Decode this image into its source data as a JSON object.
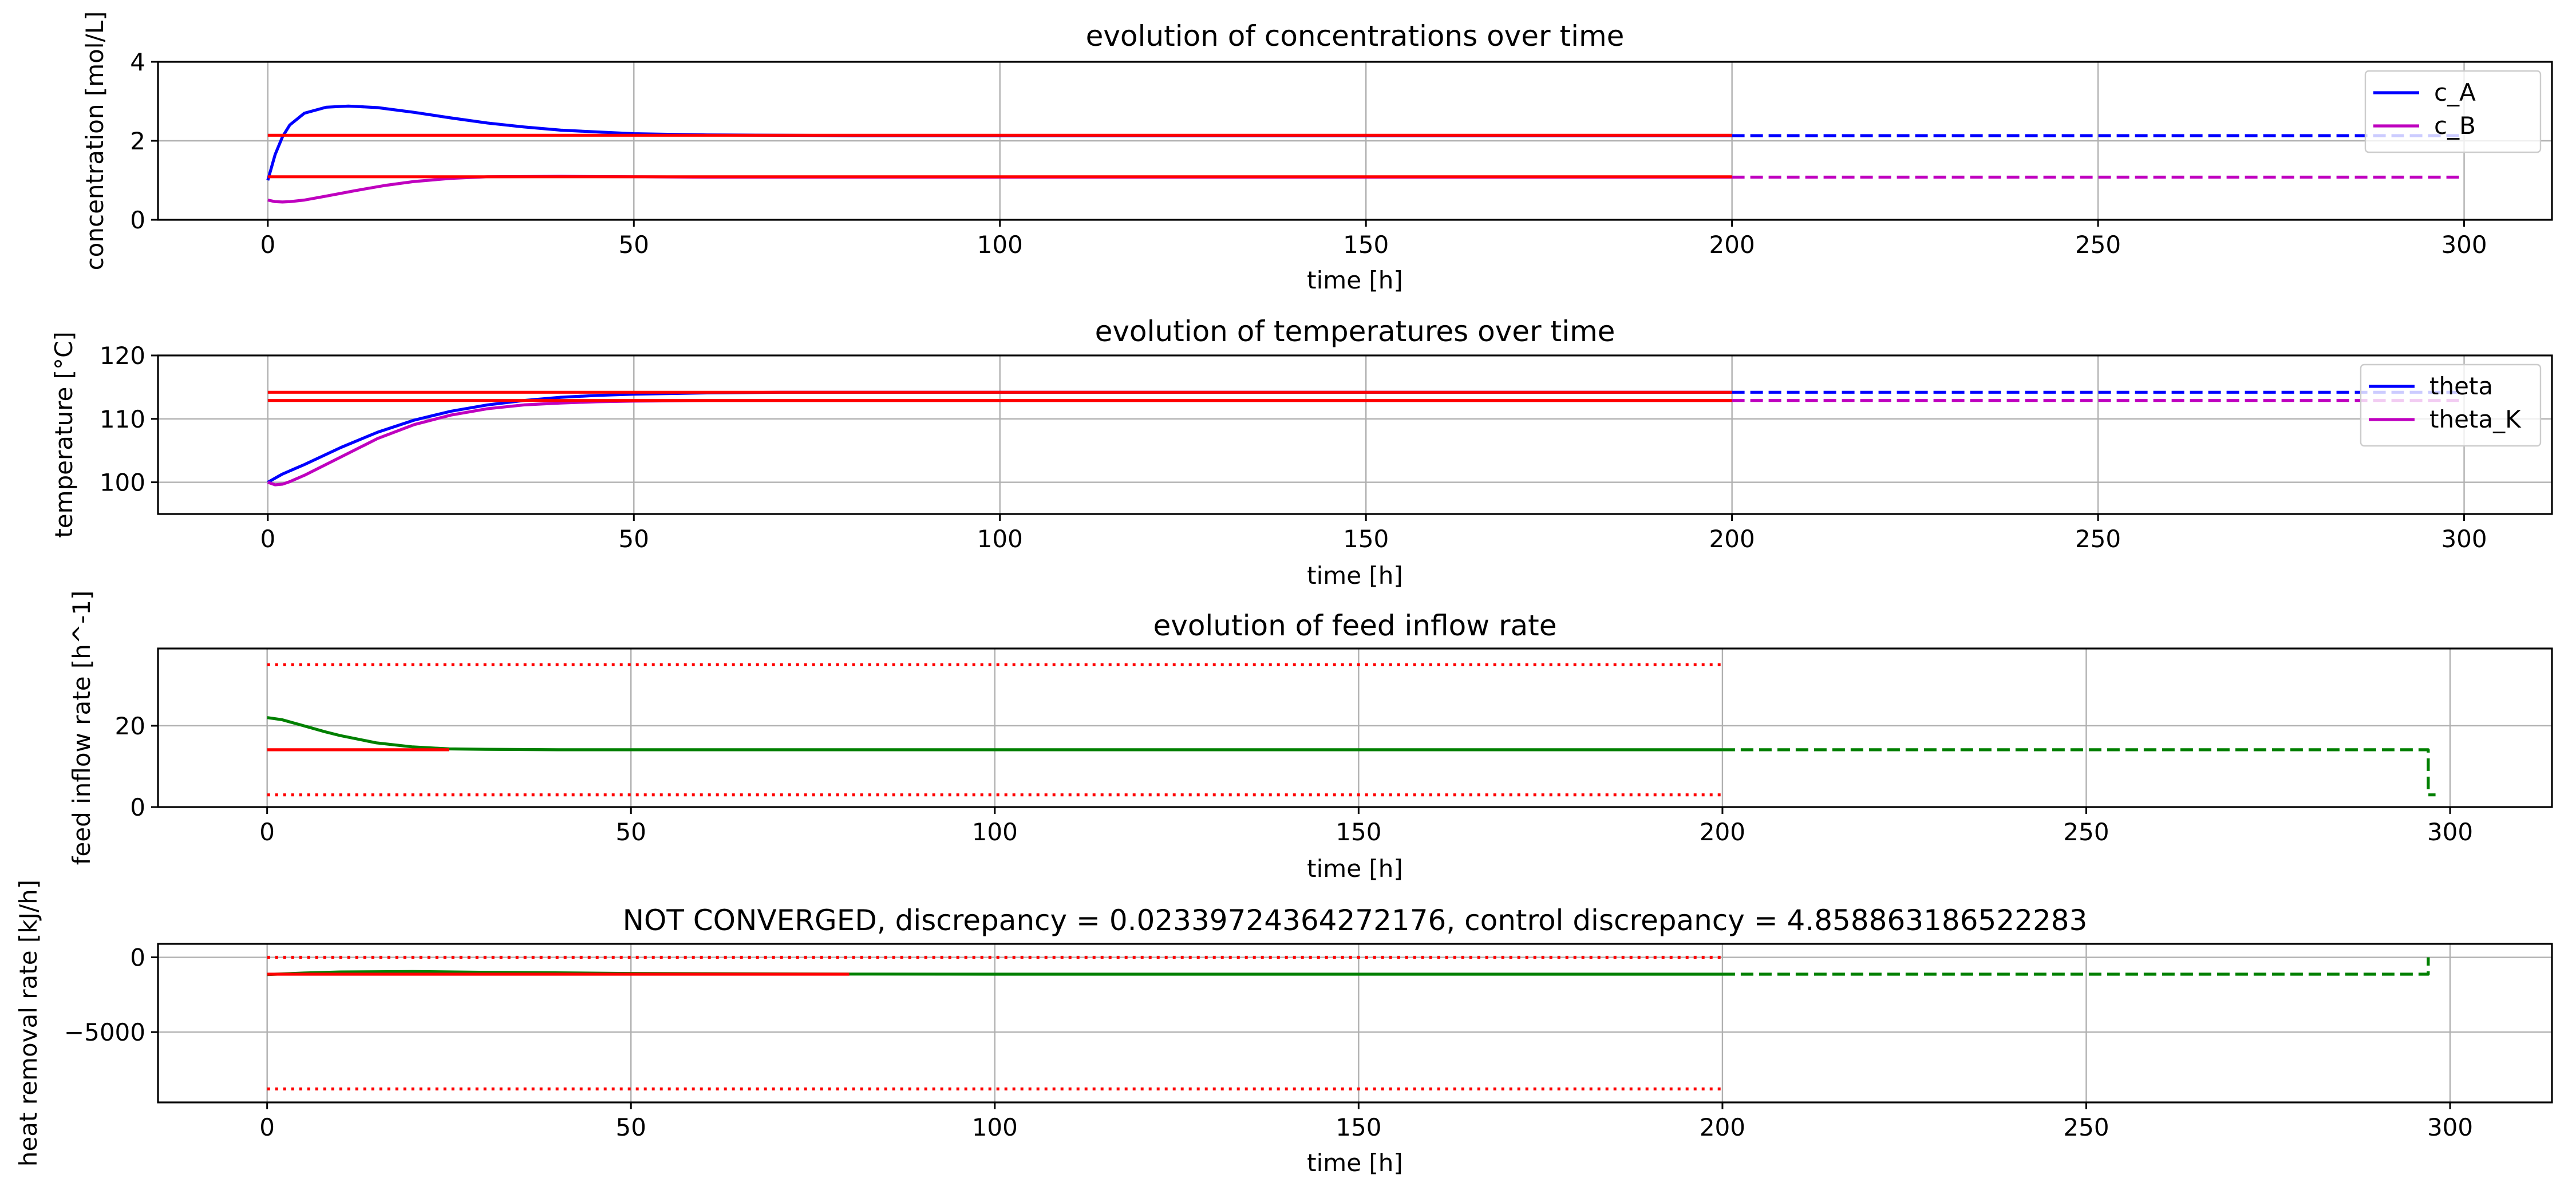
{
  "chart_data": [
    {
      "type": "line",
      "title": "evolution of concentrations over time",
      "xlabel": "time [h]",
      "ylabel": "concentration [mol/L]",
      "xlim": [
        -15,
        312
      ],
      "ylim": [
        0,
        4
      ],
      "xticks": [
        0,
        50,
        100,
        150,
        200,
        250,
        300
      ],
      "yticks": [
        0,
        2,
        4
      ],
      "grid": true,
      "legend_position": "top-right",
      "legend": [
        "c_A",
        "c_B"
      ],
      "series": [
        {
          "name": "c_A",
          "color": "#0000ff",
          "style": "solid",
          "x": [
            0,
            1,
            2,
            3,
            5,
            8,
            11,
            15,
            20,
            25,
            30,
            35,
            40,
            50,
            60,
            80,
            100,
            150,
            200
          ],
          "y": [
            1.0,
            1.65,
            2.1,
            2.4,
            2.7,
            2.85,
            2.88,
            2.84,
            2.72,
            2.58,
            2.45,
            2.35,
            2.27,
            2.18,
            2.15,
            2.13,
            2.13,
            2.13,
            2.13
          ]
        },
        {
          "name": "c_A",
          "color": "#0000ff",
          "style": "dashed",
          "x": [
            200,
            300
          ],
          "y": [
            2.13,
            2.13
          ]
        },
        {
          "name": "c_B",
          "color": "#bf00bf",
          "style": "solid",
          "x": [
            0,
            1,
            2,
            3,
            5,
            8,
            12,
            16,
            20,
            25,
            30,
            40,
            50,
            60,
            80,
            100,
            150,
            200
          ],
          "y": [
            0.5,
            0.46,
            0.45,
            0.46,
            0.5,
            0.6,
            0.74,
            0.87,
            0.97,
            1.05,
            1.09,
            1.1,
            1.09,
            1.08,
            1.08,
            1.08,
            1.08,
            1.08
          ]
        },
        {
          "name": "c_B",
          "color": "#bf00bf",
          "style": "dashed",
          "x": [
            200,
            300
          ],
          "y": [
            1.08,
            1.08
          ]
        },
        {
          "color": "#ff0000",
          "style": "solid",
          "x": [
            0,
            200
          ],
          "y": [
            2.14,
            2.14
          ]
        },
        {
          "color": "#ff0000",
          "style": "solid",
          "x": [
            0,
            200
          ],
          "y": [
            1.09,
            1.09
          ]
        }
      ]
    },
    {
      "type": "line",
      "title": "evolution of temperatures over time",
      "xlabel": "time [h]",
      "ylabel": "temperature [°C]",
      "xlim": [
        -15,
        312
      ],
      "ylim": [
        95,
        120
      ],
      "xticks": [
        0,
        50,
        100,
        150,
        200,
        250,
        300
      ],
      "yticks": [
        100,
        110,
        120
      ],
      "grid": true,
      "legend_position": "top-right",
      "legend": [
        "theta",
        "theta_K"
      ],
      "series": [
        {
          "name": "theta",
          "color": "#0000ff",
          "style": "solid",
          "x": [
            0,
            2,
            5,
            10,
            15,
            20,
            25,
            30,
            35,
            40,
            45,
            50,
            60,
            70,
            80,
            100,
            150,
            200
          ],
          "y": [
            100,
            101.3,
            102.8,
            105.5,
            107.9,
            109.8,
            111.2,
            112.2,
            112.9,
            113.4,
            113.7,
            113.9,
            114.1,
            114.2,
            114.2,
            114.2,
            114.2,
            114.2
          ]
        },
        {
          "name": "theta",
          "color": "#0000ff",
          "style": "dashed",
          "x": [
            200,
            300
          ],
          "y": [
            114.2,
            114.2
          ]
        },
        {
          "name": "theta_K",
          "color": "#bf00bf",
          "style": "solid",
          "x": [
            0,
            1,
            2,
            3,
            5,
            10,
            15,
            20,
            25,
            30,
            35,
            40,
            45,
            50,
            60,
            70,
            80,
            100,
            150,
            200
          ],
          "y": [
            100,
            99.6,
            99.7,
            100.1,
            101.1,
            104.0,
            106.9,
            109.1,
            110.6,
            111.6,
            112.2,
            112.5,
            112.7,
            112.8,
            112.9,
            112.9,
            112.9,
            112.9,
            112.9,
            112.9
          ]
        },
        {
          "name": "theta_K",
          "color": "#bf00bf",
          "style": "dashed",
          "x": [
            200,
            300
          ],
          "y": [
            112.9,
            112.9
          ]
        },
        {
          "color": "#ff0000",
          "style": "solid",
          "x": [
            0,
            200
          ],
          "y": [
            114.2,
            114.2
          ]
        },
        {
          "color": "#ff0000",
          "style": "solid",
          "x": [
            0,
            200
          ],
          "y": [
            112.9,
            112.9
          ]
        }
      ]
    },
    {
      "type": "line",
      "title": "evolution of feed inflow rate",
      "xlabel": "time [h]",
      "ylabel": "feed inflow rate [h^-1]",
      "xlim": [
        -15,
        314
      ],
      "ylim": [
        0,
        39
      ],
      "xticks": [
        0,
        50,
        100,
        150,
        200,
        250,
        300
      ],
      "yticks": [
        0,
        20
      ],
      "grid": true,
      "series": [
        {
          "color": "#008000",
          "style": "solid",
          "x": [
            0,
            2,
            5,
            8,
            10,
            15,
            20,
            25,
            30,
            40,
            50,
            100,
            150,
            200
          ],
          "y": [
            22,
            21.5,
            20.0,
            18.5,
            17.6,
            15.8,
            14.8,
            14.3,
            14.2,
            14.1,
            14.1,
            14.1,
            14.1,
            14.1
          ]
        },
        {
          "color": "#008000",
          "style": "dashed",
          "x": [
            200,
            297,
            297,
            298
          ],
          "y": [
            14.1,
            14.1,
            3,
            3
          ]
        },
        {
          "color": "#ff0000",
          "style": "solid",
          "x": [
            0,
            25
          ],
          "y": [
            14.1,
            14.1
          ]
        },
        {
          "color": "#ff0000",
          "style": "dotted",
          "x": [
            0,
            200
          ],
          "y": [
            35,
            35
          ]
        },
        {
          "color": "#ff0000",
          "style": "dotted",
          "x": [
            0,
            200
          ],
          "y": [
            3,
            3
          ]
        }
      ]
    },
    {
      "type": "line",
      "title": "NOT CONVERGED, discrepancy = 0.02339724364272176, control discrepancy = 4.858863186522283",
      "xlabel": "time [h]",
      "ylabel": "heat removal rate [kJ/h]",
      "xlim": [
        -15,
        314
      ],
      "ylim": [
        -9700,
        900
      ],
      "xticks": [
        0,
        50,
        100,
        150,
        200,
        250,
        300
      ],
      "yticks": [
        -5000,
        0
      ],
      "grid": true,
      "series": [
        {
          "color": "#008000",
          "style": "solid",
          "x": [
            0,
            5,
            10,
            20,
            30,
            50,
            80,
            100,
            150,
            200
          ],
          "y": [
            -1150,
            -1050,
            -980,
            -950,
            -1000,
            -1080,
            -1120,
            -1130,
            -1130,
            -1130
          ]
        },
        {
          "color": "#008000",
          "style": "dashed",
          "x": [
            200,
            297,
            297
          ],
          "y": [
            -1130,
            -1130,
            0
          ]
        },
        {
          "color": "#ff0000",
          "style": "solid",
          "x": [
            0,
            80
          ],
          "y": [
            -1130,
            -1130
          ]
        },
        {
          "color": "#ff0000",
          "style": "dotted",
          "x": [
            0,
            200
          ],
          "y": [
            0,
            0
          ]
        },
        {
          "color": "#ff0000",
          "style": "dotted",
          "x": [
            0,
            200
          ],
          "y": [
            -8800,
            -8800
          ]
        }
      ]
    }
  ]
}
